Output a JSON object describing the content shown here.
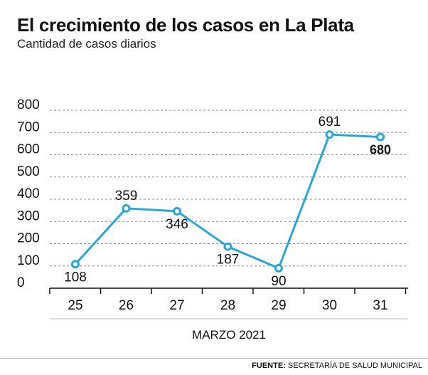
{
  "chart_data": {
    "type": "line",
    "title": "El crecimiento de los casos en La Plata",
    "subtitle": "Cantidad de casos diarios",
    "categories": [
      "25",
      "26",
      "27",
      "28",
      "29",
      "30",
      "31"
    ],
    "values": [
      108,
      359,
      346,
      187,
      90,
      691,
      680
    ],
    "yticks": [
      "0",
      "100",
      "200",
      "300",
      "400",
      "500",
      "600",
      "700",
      "800"
    ],
    "ylim": [
      0,
      800
    ],
    "xlabel": "MARZO 2021",
    "ylabel": "",
    "grid": true,
    "highlight_last": true,
    "line_color": "#2aa6d6"
  },
  "footer": {
    "source_label": "FUENTE:",
    "source_text": "SECRETARÍA DE SALUD MUNICIPAL"
  }
}
